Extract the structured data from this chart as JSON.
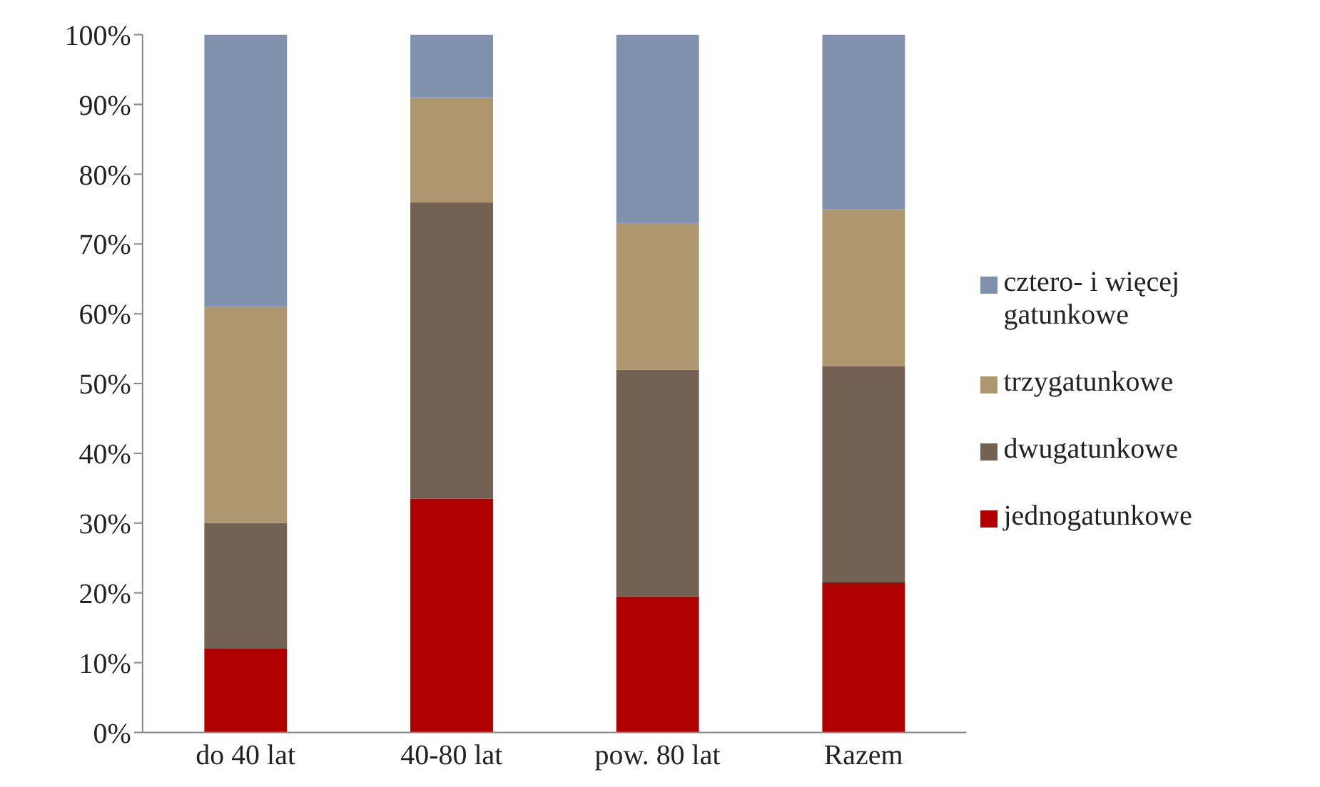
{
  "chart_data": {
    "type": "bar",
    "stacked": true,
    "categories": [
      "do 40 lat",
      "40-80 lat",
      "pow. 80 lat",
      "Razem"
    ],
    "series": [
      {
        "name": "jednogatunkowe",
        "color": "#b00000",
        "values": [
          12,
          33.5,
          19.5,
          21.5
        ]
      },
      {
        "name": "dwugatunkowe",
        "color": "#736154",
        "values": [
          18,
          42.5,
          32.5,
          31
        ]
      },
      {
        "name": "trzygatunkowe",
        "color": "#ae966f",
        "values": [
          31,
          15,
          21,
          22.5
        ]
      },
      {
        "name": "cztero- i więcej gatunkowe",
        "color": "#7f91ad",
        "values": [
          39,
          9,
          27,
          25
        ]
      }
    ],
    "ylim": [
      0,
      100
    ],
    "yticks": [
      {
        "value": 0,
        "label": "0%"
      },
      {
        "value": 10,
        "label": "10%"
      },
      {
        "value": 20,
        "label": "20%"
      },
      {
        "value": 30,
        "label": "30%"
      },
      {
        "value": 40,
        "label": "40%"
      },
      {
        "value": 50,
        "label": "50%"
      },
      {
        "value": 60,
        "label": "60%"
      },
      {
        "value": 70,
        "label": "70%"
      },
      {
        "value": 80,
        "label": "80%"
      },
      {
        "value": 90,
        "label": "90%"
      },
      {
        "value": 100,
        "label": "100%"
      }
    ],
    "grid": false,
    "legend": "right"
  }
}
